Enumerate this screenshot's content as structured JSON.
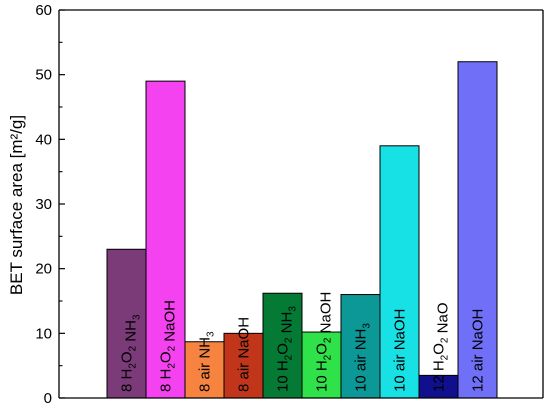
{
  "chart_data": {
    "type": "bar",
    "title": "",
    "xlabel": "",
    "ylabel": "BET surface area [m²/g]",
    "ylim": [
      0,
      60
    ],
    "yticks": [
      0,
      10,
      20,
      30,
      40,
      50,
      60
    ],
    "grid": false,
    "bars": [
      {
        "label": "8 H2O2 NH3",
        "value": 23,
        "color": "#7b3a78"
      },
      {
        "label": "8 H2O2 NaOH",
        "value": 49,
        "color": "#f542f0"
      },
      {
        "label": "8 air NH3",
        "value": 8.7,
        "color": "#f68440"
      },
      {
        "label": "8 air NaOH",
        "value": 10,
        "color": "#c1361a"
      },
      {
        "label": "10 H2O2 NH3",
        "value": 16.2,
        "color": "#057a35"
      },
      {
        "label": "10 H2O2 NaOH",
        "value": 10.2,
        "color": "#2fe24a"
      },
      {
        "label": "10 air NH3",
        "value": 16,
        "color": "#0b9896"
      },
      {
        "label": "10 air NaOH",
        "value": 39,
        "color": "#17e1e5"
      },
      {
        "label": "12 H2O2 NaO",
        "value": 3.5,
        "color": "#10108e"
      },
      {
        "label": "12 air NaOH",
        "value": 52,
        "color": "#6f6ff8"
      }
    ]
  }
}
